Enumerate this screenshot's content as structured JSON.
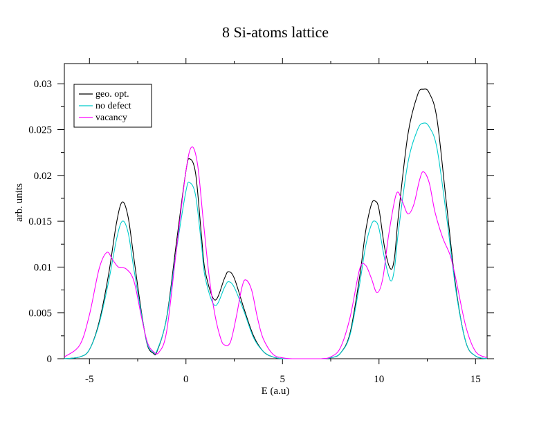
{
  "chart_data": {
    "type": "line",
    "title": "8 Si-atoms lattice",
    "xlabel": "E (a.u)",
    "ylabel": "arb. units",
    "xlim": [
      -6.3,
      15.6
    ],
    "ylim": [
      0,
      0.0322
    ],
    "xticks": [
      {
        "value": -5,
        "label": "-5"
      },
      {
        "value": 0,
        "label": "0"
      },
      {
        "value": 5,
        "label": "5"
      },
      {
        "value": 10,
        "label": "10"
      },
      {
        "value": 15,
        "label": "15"
      }
    ],
    "yticks": [
      {
        "value": 0,
        "label": "0"
      },
      {
        "value": 0.005,
        "label": "0.005"
      },
      {
        "value": 0.01,
        "label": "0.01"
      },
      {
        "value": 0.015,
        "label": "0.015"
      },
      {
        "value": 0.02,
        "label": "0.02"
      },
      {
        "value": 0.025,
        "label": "0.025"
      },
      {
        "value": 0.03,
        "label": "0.03"
      }
    ],
    "grid": false,
    "legend_position": "top-left",
    "series": [
      {
        "name": "geo. opt.",
        "color": "#000000",
        "x": [
          -6.3,
          -5.5,
          -5.0,
          -4.5,
          -4.0,
          -3.6,
          -3.3,
          -3.0,
          -2.7,
          -2.3,
          -2.0,
          -1.7,
          -1.5,
          -1.0,
          -0.5,
          0.0,
          0.2,
          0.5,
          0.8,
          1.0,
          1.5,
          2.0,
          2.2,
          2.5,
          3.0,
          3.5,
          4.0,
          4.5,
          5.0,
          5.5,
          6.0,
          7.0,
          7.5,
          8.0,
          8.5,
          9.0,
          9.3,
          9.6,
          9.8,
          10.0,
          10.3,
          10.6,
          10.8,
          11.0,
          11.5,
          12.0,
          12.3,
          12.6,
          13.0,
          13.5,
          14.0,
          14.5,
          15.0,
          15.6
        ],
        "y": [
          0.0,
          0.0002,
          0.001,
          0.004,
          0.0093,
          0.0148,
          0.0171,
          0.0155,
          0.011,
          0.005,
          0.0015,
          0.0006,
          0.0008,
          0.0045,
          0.0126,
          0.0205,
          0.0218,
          0.0202,
          0.0135,
          0.0095,
          0.0064,
          0.0088,
          0.0095,
          0.0088,
          0.0055,
          0.0025,
          0.0008,
          0.0002,
          0.0,
          0.0,
          0.0,
          0.0,
          0.0001,
          0.0006,
          0.0028,
          0.009,
          0.0138,
          0.0168,
          0.0172,
          0.0163,
          0.012,
          0.0098,
          0.011,
          0.0155,
          0.0245,
          0.0288,
          0.0294,
          0.029,
          0.0262,
          0.0168,
          0.0075,
          0.0018,
          0.0003,
          0.0
        ]
      },
      {
        "name": "no defect",
        "color": "#00cccc",
        "x": [
          -6.3,
          -5.5,
          -5.0,
          -4.5,
          -4.0,
          -3.6,
          -3.3,
          -3.0,
          -2.7,
          -2.3,
          -2.0,
          -1.7,
          -1.5,
          -1.0,
          -0.5,
          0.0,
          0.2,
          0.5,
          0.8,
          1.0,
          1.5,
          2.0,
          2.2,
          2.5,
          3.0,
          3.5,
          4.0,
          4.5,
          5.0,
          5.5,
          6.0,
          7.0,
          7.5,
          8.0,
          8.5,
          9.0,
          9.3,
          9.6,
          9.8,
          10.0,
          10.3,
          10.6,
          10.8,
          11.0,
          11.5,
          12.0,
          12.3,
          12.6,
          13.0,
          13.5,
          14.0,
          14.5,
          15.0,
          15.6
        ],
        "y": [
          0.0,
          0.0002,
          0.001,
          0.0038,
          0.0085,
          0.013,
          0.015,
          0.0138,
          0.0098,
          0.0048,
          0.0016,
          0.0007,
          0.0009,
          0.0044,
          0.0118,
          0.0183,
          0.0192,
          0.0178,
          0.0125,
          0.0088,
          0.0058,
          0.0078,
          0.0084,
          0.0078,
          0.0052,
          0.0023,
          0.0008,
          0.0002,
          0.0,
          0.0,
          0.0,
          0.0,
          0.0001,
          0.0006,
          0.0026,
          0.0082,
          0.0122,
          0.0146,
          0.015,
          0.0142,
          0.0108,
          0.0085,
          0.0098,
          0.0138,
          0.0214,
          0.025,
          0.0257,
          0.0253,
          0.023,
          0.0155,
          0.0072,
          0.0018,
          0.0003,
          0.0
        ]
      },
      {
        "name": "vacancy",
        "color": "#ff00ff",
        "x": [
          -6.3,
          -5.5,
          -5.0,
          -4.5,
          -4.1,
          -3.8,
          -3.5,
          -3.1,
          -2.7,
          -2.3,
          -2.0,
          -1.7,
          -1.4,
          -1.0,
          -0.5,
          0.0,
          0.3,
          0.6,
          0.9,
          1.2,
          1.5,
          1.8,
          2.0,
          2.3,
          2.6,
          2.9,
          3.1,
          3.4,
          3.7,
          4.0,
          4.5,
          5.0,
          5.5,
          6.0,
          7.0,
          7.5,
          8.0,
          8.5,
          9.0,
          9.3,
          9.6,
          9.9,
          10.2,
          10.5,
          10.9,
          11.2,
          11.5,
          11.8,
          12.1,
          12.3,
          12.6,
          12.9,
          13.3,
          13.7,
          14.0,
          14.5,
          15.0,
          15.6
        ],
        "y": [
          0.0002,
          0.0015,
          0.0048,
          0.0098,
          0.0116,
          0.0108,
          0.01,
          0.0098,
          0.0085,
          0.0045,
          0.0018,
          0.0008,
          0.0007,
          0.003,
          0.0118,
          0.0205,
          0.0231,
          0.0212,
          0.015,
          0.009,
          0.0048,
          0.0022,
          0.0015,
          0.0018,
          0.0045,
          0.0078,
          0.0086,
          0.0075,
          0.0045,
          0.0022,
          0.0005,
          0.0001,
          0.0,
          0.0,
          0.0,
          0.0002,
          0.0012,
          0.0045,
          0.0098,
          0.0102,
          0.0088,
          0.0072,
          0.0088,
          0.0135,
          0.018,
          0.0172,
          0.0158,
          0.0168,
          0.0195,
          0.0204,
          0.0192,
          0.016,
          0.0132,
          0.0112,
          0.0085,
          0.0035,
          0.0008,
          0.0001
        ]
      }
    ]
  }
}
